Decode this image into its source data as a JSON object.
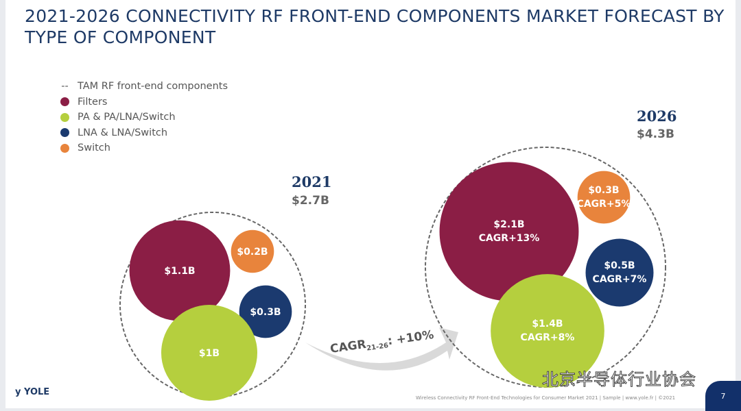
{
  "title": "2021-2026 CONNECTIVITY RF FRONT-END COMPONENTS MARKET FORECAST BY TYPE OF COMPONENT",
  "legend": [
    {
      "label": "TAM RF front-end components",
      "marker": "dashed"
    },
    {
      "label": "Filters",
      "color": "#8b1e45"
    },
    {
      "label": "PA & PA/LNA/Switch",
      "color": "#b5cf3e"
    },
    {
      "label": "LNA & LNA/Switch",
      "color": "#1b3a6f"
    },
    {
      "label": "Switch",
      "color": "#e8843c"
    }
  ],
  "chart_data": {
    "type": "bubble",
    "title": "2021-2026 CONNECTIVITY RF FRONT-END COMPONENTS MARKET FORECAST BY TYPE OF COMPONENT",
    "unit": "$B",
    "groups": [
      {
        "year": "2021",
        "total_label": "$2.7B",
        "total": 2.7,
        "bubbles": [
          {
            "name": "Filters",
            "value": 1.1,
            "label": "$1.1B"
          },
          {
            "name": "Switch",
            "value": 0.2,
            "label": "$0.2B"
          },
          {
            "name": "LNA & LNA/Switch",
            "value": 0.3,
            "label": "$0.3B"
          },
          {
            "name": "PA & PA/LNA/Switch",
            "value": 1.0,
            "label": "$1B"
          }
        ]
      },
      {
        "year": "2026",
        "total_label": "$4.3B",
        "total": 4.3,
        "bubbles": [
          {
            "name": "Filters",
            "value": 2.1,
            "label": "$2.1B",
            "cagr": "CAGR+13%"
          },
          {
            "name": "Switch",
            "value": 0.3,
            "label": "$0.3B",
            "cagr": "CAGR+5%"
          },
          {
            "name": "LNA & LNA/Switch",
            "value": 0.5,
            "label": "$0.5B",
            "cagr": "CAGR+7%"
          },
          {
            "name": "PA & PA/LNA/Switch",
            "value": 1.4,
            "label": "$1.4B",
            "cagr": "CAGR+8%"
          }
        ]
      }
    ],
    "arrow": {
      "label": "CAGR",
      "sub": "21-26",
      "value": ": +10%"
    }
  },
  "footer": "Wireless Connectivity RF Front-End Technologies for Consumer Market 2021 | Sample | www.yole.fr | ©2021",
  "page_number": "7",
  "logo": "YOLE",
  "watermark": "北京半导体行业协会"
}
